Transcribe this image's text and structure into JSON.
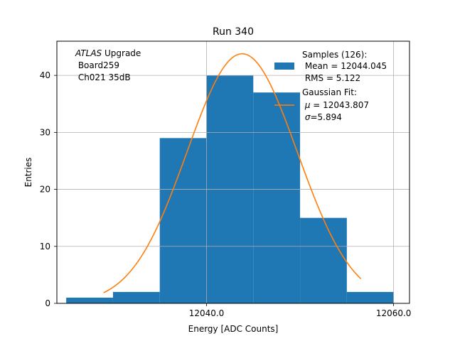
{
  "chart_data": {
    "type": "bar",
    "title": "Run 340",
    "xlabel": "Energy [ADC Counts]",
    "ylabel": "Entries",
    "xlim": [
      12024.0,
      12061.7
    ],
    "ylim": [
      0,
      46
    ],
    "grid": true,
    "x_ticks": [
      12040.0,
      12060.0
    ],
    "x_tick_labels": [
      "12040.0",
      "12060.0"
    ],
    "y_ticks": [
      0,
      10,
      20,
      30,
      40
    ],
    "y_tick_labels": [
      "0",
      "10",
      "20",
      "30",
      "40"
    ],
    "bins": [
      {
        "x0": 12025,
        "x1": 12030,
        "count": 1
      },
      {
        "x0": 12030,
        "x1": 12035,
        "count": 2
      },
      {
        "x0": 12035,
        "x1": 12040,
        "count": 29
      },
      {
        "x0": 12040,
        "x1": 12045,
        "count": 40
      },
      {
        "x0": 12045,
        "x1": 12050,
        "count": 37
      },
      {
        "x0": 12050,
        "x1": 12055,
        "count": 15
      },
      {
        "x0": 12055,
        "x1": 12060,
        "count": 2
      }
    ],
    "fit": {
      "type": "gaussian",
      "mu": 12043.807,
      "sigma": 5.894,
      "amplitude": 43.8,
      "x_range": [
        12029.0,
        12056.5
      ]
    },
    "annotation": {
      "atlas": "ATLAS",
      "upgrade": " Upgrade",
      "line2": " Board259",
      "line3": " Ch021 35dB"
    },
    "legend": {
      "placement": "top-right",
      "hist_label_1": "Samples (126):",
      "hist_label_2": " Mean = 12044.045",
      "hist_label_3": " RMS = 5.122",
      "fit_label_1": "Gaussian Fit:",
      "fit_label_2_sym": "μ",
      "fit_label_2_rest": " = 12043.807",
      "fit_label_3_sym": "σ",
      "fit_label_3_rest": "=5.894"
    },
    "colors": {
      "hist": "#1f77b4",
      "fit": "#ff7f0e",
      "grid": "#b0b0b0"
    }
  }
}
